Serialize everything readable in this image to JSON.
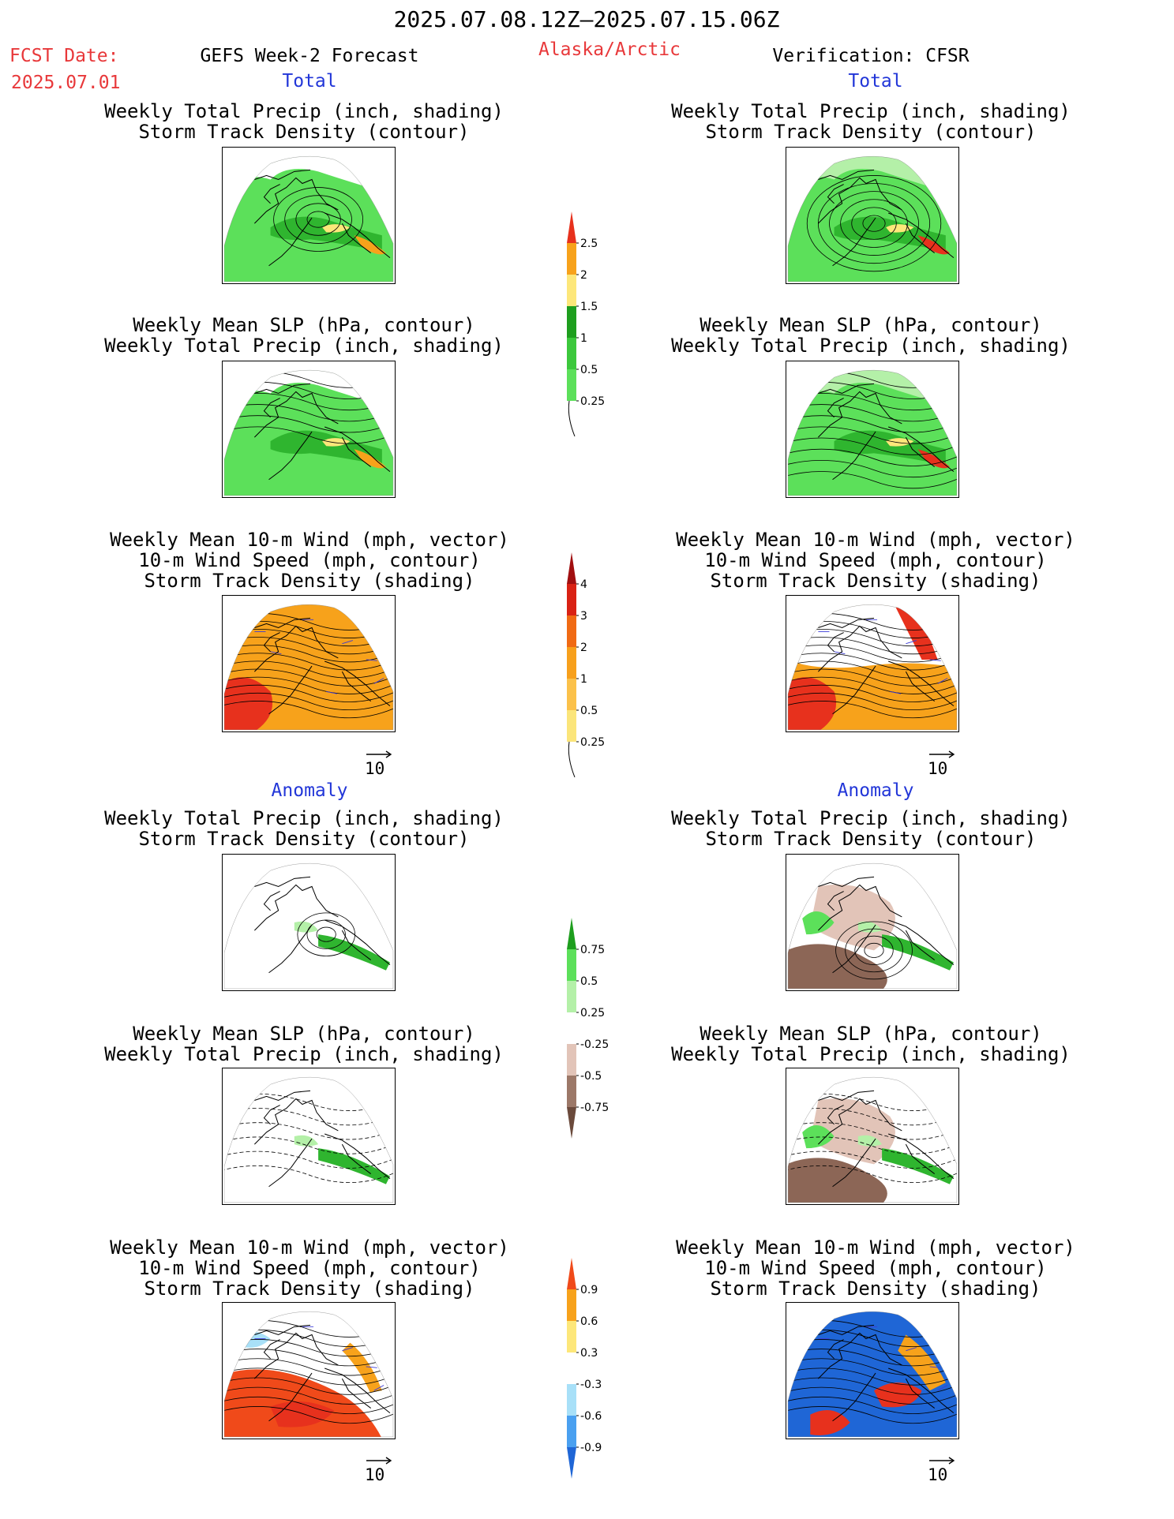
{
  "header": {
    "date_range": "2025.07.08.12Z–2025.07.15.06Z",
    "fcst_label": "FCST Date:",
    "fcst_date": "2025.07.01",
    "model": "GEFS Week-2 Forecast",
    "region": "Alaska/Arctic",
    "verification": "Verification: CFSR"
  },
  "sections": {
    "total": "Total",
    "anomaly": "Anomaly"
  },
  "panel_titles": {
    "precip_storm": [
      "Weekly Total Precip (inch, shading)",
      "Storm Track Density (contour)"
    ],
    "slp_precip": [
      "Weekly Mean SLP (hPa, contour)",
      "Weekly Total Precip (inch, shading)"
    ],
    "wind_storm": [
      "Weekly Mean 10-m Wind (mph, vector)",
      "10-m Wind Speed (mph, contour)",
      "Storm Track Density (shading)"
    ]
  },
  "vector_reference": "10",
  "colorbars": {
    "precip_total": {
      "labels": [
        "0.25",
        "0.5",
        "1",
        "1.5",
        "2",
        "2.5"
      ],
      "colors": [
        "#b4f0a8",
        "#5ce05a",
        "#3cc83c",
        "#1e9e1e",
        "#fde77a",
        "#f7a21b",
        "#e7311d"
      ]
    },
    "storm_total": {
      "labels": [
        "0.25",
        "0.5",
        "1",
        "2",
        "3",
        "4"
      ],
      "colors": [
        "#fdf5b4",
        "#fbe57a",
        "#fbc14a",
        "#f7a01c",
        "#f06a14",
        "#d92214",
        "#a10f10"
      ]
    },
    "precip_anom": {
      "labels": [
        "-0.75",
        "-0.5",
        "-0.25",
        "0.25",
        "0.5",
        "0.75"
      ],
      "colors": [
        "#6b4a3c",
        "#9c7868",
        "#e2c4b8",
        "#ffffff",
        "#b4f0a8",
        "#5ce05a",
        "#1e9e1e"
      ]
    },
    "storm_anom": {
      "labels": [
        "-0.9",
        "-0.6",
        "-0.3",
        "0.3",
        "0.6",
        "0.9"
      ],
      "colors": [
        "#1f66d6",
        "#4aa0f0",
        "#a8e0f8",
        "#ffffff",
        "#fde77a",
        "#f7a21b",
        "#f04a1a"
      ]
    }
  },
  "map_colors": {
    "green_light": "#5ce05a",
    "green_dark": "#2fb52f",
    "green_pale": "#b4f0a8",
    "yellow": "#fde77a",
    "orange": "#f7a21b",
    "red": "#e7311d",
    "brown_light": "#e2c4b8",
    "brown_dark": "#8c6656",
    "blue": "#1f66d6",
    "vector": "#3a3ad8"
  }
}
